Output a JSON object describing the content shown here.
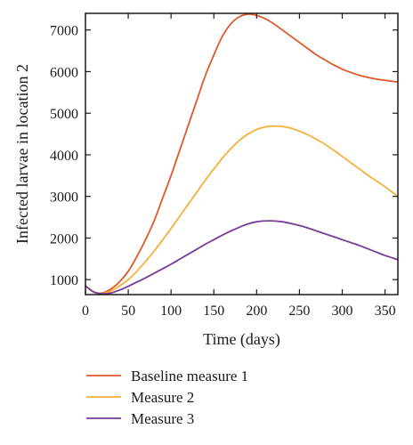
{
  "chart_data": {
    "type": "line",
    "xlabel": "Time (days)",
    "ylabel": "Infected larvae in location 2",
    "xlim": [
      0,
      365
    ],
    "ylim": [
      640,
      7400
    ],
    "xticks": [
      0,
      50,
      100,
      150,
      200,
      250,
      300,
      350
    ],
    "yticks": [
      1000,
      2000,
      3000,
      4000,
      5000,
      6000,
      7000
    ],
    "grid": false,
    "legend_position": "bottom",
    "series": [
      {
        "name": "Baseline measure 1",
        "color": "#e0592a",
        "x": [
          0,
          10,
          20,
          30,
          40,
          50,
          60,
          70,
          80,
          90,
          100,
          110,
          120,
          130,
          140,
          150,
          160,
          170,
          180,
          190,
          200,
          210,
          220,
          230,
          240,
          250,
          260,
          270,
          280,
          290,
          300,
          310,
          320,
          330,
          340,
          350,
          365
        ],
        "y": [
          850,
          700,
          680,
          780,
          950,
          1200,
          1550,
          1950,
          2400,
          2950,
          3500,
          4100,
          4700,
          5300,
          5900,
          6400,
          6850,
          7150,
          7320,
          7380,
          7350,
          7270,
          7150,
          7000,
          6850,
          6700,
          6550,
          6400,
          6280,
          6160,
          6060,
          5980,
          5910,
          5860,
          5820,
          5790,
          5750
        ]
      },
      {
        "name": "Measure 2",
        "color": "#f5b03a",
        "x": [
          0,
          10,
          20,
          30,
          40,
          50,
          60,
          70,
          80,
          90,
          100,
          110,
          120,
          130,
          140,
          150,
          160,
          170,
          180,
          190,
          200,
          210,
          220,
          230,
          240,
          250,
          260,
          270,
          280,
          290,
          300,
          310,
          320,
          330,
          340,
          350,
          365
        ],
        "y": [
          850,
          700,
          670,
          730,
          850,
          1000,
          1200,
          1430,
          1680,
          1950,
          2230,
          2520,
          2810,
          3100,
          3390,
          3660,
          3920,
          4150,
          4350,
          4500,
          4610,
          4670,
          4690,
          4680,
          4640,
          4570,
          4480,
          4370,
          4250,
          4110,
          3960,
          3810,
          3660,
          3510,
          3370,
          3230,
          3000
        ]
      },
      {
        "name": "Measure 3",
        "color": "#7a3a98",
        "x": [
          0,
          10,
          20,
          30,
          40,
          50,
          60,
          70,
          80,
          90,
          100,
          110,
          120,
          130,
          140,
          150,
          160,
          170,
          180,
          190,
          200,
          210,
          220,
          230,
          240,
          250,
          260,
          270,
          280,
          290,
          300,
          310,
          320,
          330,
          340,
          350,
          365
        ],
        "y": [
          850,
          700,
          660,
          680,
          750,
          840,
          940,
          1040,
          1150,
          1260,
          1370,
          1490,
          1610,
          1730,
          1850,
          1960,
          2070,
          2170,
          2260,
          2340,
          2390,
          2410,
          2410,
          2390,
          2350,
          2300,
          2240,
          2170,
          2100,
          2030,
          1960,
          1890,
          1820,
          1740,
          1660,
          1580,
          1480
        ]
      }
    ]
  }
}
